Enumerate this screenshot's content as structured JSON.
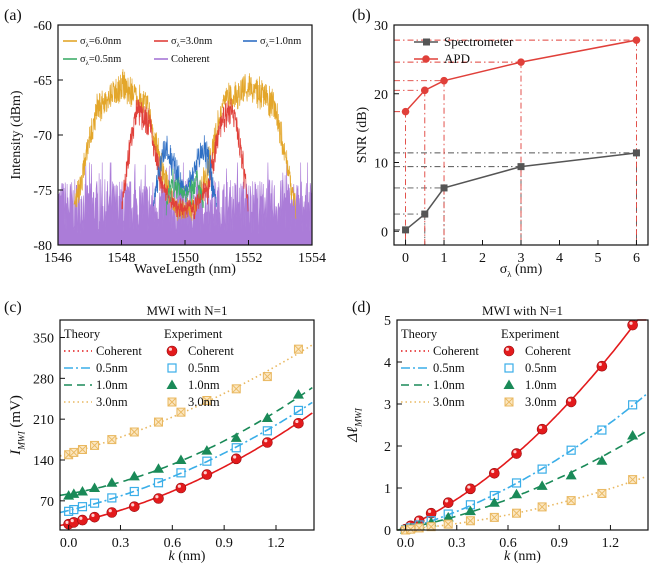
{
  "chart_data": [
    {
      "id": "a",
      "type": "area",
      "panel_label": "(a)",
      "title": "",
      "xlabel": "WaveLength (nm)",
      "ylabel": "Intensity (dBm)",
      "xlim": [
        1546,
        1554
      ],
      "ylim": [
        -80,
        -60
      ],
      "xticks": [
        1546,
        1548,
        1550,
        1552,
        1554
      ],
      "yticks": [
        -80,
        -75,
        -70,
        -65,
        -60
      ],
      "legend": [
        {
          "label": "σ",
          "sub": "λ",
          "tail": "=6.0nm",
          "color": "#e3a62a"
        },
        {
          "label": "σ",
          "sub": "λ",
          "tail": "=3.0nm",
          "color": "#e0403a"
        },
        {
          "label": "σ",
          "sub": "λ",
          "tail": "=1.0nm",
          "color": "#2f6fc4"
        },
        {
          "label": "σ",
          "sub": "λ",
          "tail": "=0.5nm",
          "color": "#3fae6a"
        },
        {
          "label": "Coherent",
          "sub": "",
          "tail": "",
          "color": "#a776d6"
        }
      ],
      "series": [
        {
          "name": "6.0nm",
          "color": "#e3a62a",
          "envelope": [
            [
              1546.5,
              -76
            ],
            [
              1546.8,
              -72
            ],
            [
              1547.2,
              -66.5
            ],
            [
              1548.0,
              -64.2
            ],
            [
              1548.8,
              -66
            ],
            [
              1549.3,
              -72
            ],
            [
              1549.7,
              -76
            ],
            [
              1550.3,
              -76
            ],
            [
              1550.7,
              -72
            ],
            [
              1551.2,
              -66
            ],
            [
              1552.0,
              -64
            ],
            [
              1552.8,
              -66
            ],
            [
              1553.2,
              -71
            ],
            [
              1553.5,
              -76
            ]
          ]
        },
        {
          "name": "3.0nm",
          "color": "#e0403a",
          "envelope": [
            [
              1548.0,
              -76
            ],
            [
              1548.2,
              -71
            ],
            [
              1548.5,
              -66.5
            ],
            [
              1548.9,
              -68
            ],
            [
              1549.3,
              -74
            ],
            [
              1549.7,
              -76
            ],
            [
              1550.3,
              -76
            ],
            [
              1550.7,
              -74
            ],
            [
              1551.1,
              -68
            ],
            [
              1551.5,
              -66.5
            ],
            [
              1551.8,
              -71
            ],
            [
              1552.0,
              -76
            ]
          ]
        },
        {
          "name": "1.0nm",
          "color": "#2f6fc4",
          "envelope": [
            [
              1549.0,
              -76
            ],
            [
              1549.2,
              -72
            ],
            [
              1549.4,
              -70
            ],
            [
              1549.7,
              -72
            ],
            [
              1549.9,
              -74
            ],
            [
              1550.1,
              -74
            ],
            [
              1550.3,
              -72
            ],
            [
              1550.6,
              -70
            ],
            [
              1550.8,
              -72
            ],
            [
              1551.0,
              -76
            ]
          ]
        },
        {
          "name": "0.5nm",
          "color": "#3fae6a",
          "envelope": [
            [
              1549.4,
              -76
            ],
            [
              1549.6,
              -73
            ],
            [
              1549.8,
              -74
            ],
            [
              1550.0,
              -75
            ],
            [
              1550.2,
              -74
            ],
            [
              1550.4,
              -73
            ],
            [
              1550.6,
              -76
            ]
          ]
        },
        {
          "name": "Coherent",
          "color": "#a776d6",
          "envelope": [
            [
              1546,
              -76.5
            ],
            [
              1554,
              -76.5
            ]
          ]
        }
      ]
    },
    {
      "id": "b",
      "type": "line",
      "panel_label": "(b)",
      "xlabel": "σ",
      "xlabel_sub": "λ",
      "xlabel_tail": " (nm)",
      "ylabel": "SNR (dB)",
      "xlim": [
        -0.3,
        6.3
      ],
      "ylim": [
        -2,
        30
      ],
      "xticks": [
        0,
        1,
        2,
        3,
        4,
        5,
        6
      ],
      "yticks": [
        0,
        10,
        20,
        30
      ],
      "x": [
        0,
        0.5,
        1,
        3,
        6
      ],
      "series": [
        {
          "name": "Spectrometer",
          "color": "#555555",
          "marker": "square",
          "values": [
            0.2,
            2.5,
            6.3,
            9.4,
            11.4
          ]
        },
        {
          "name": "APD",
          "color": "#e0403a",
          "marker": "circle",
          "values": [
            17.4,
            20.5,
            21.9,
            24.6,
            27.8
          ]
        }
      ]
    },
    {
      "id": "c",
      "type": "scatter",
      "panel_label": "(c)",
      "title": "MWI with N=1",
      "xlabel": "k (nm)",
      "ylabel": "I",
      "ylabel_sub": "MWI",
      "ylabel_tail": " (mV)",
      "xlim": [
        -0.05,
        1.42
      ],
      "ylim": [
        20,
        380
      ],
      "xticks": [
        "0.0",
        "0.3",
        "0.6",
        "0.9",
        "1.2"
      ],
      "yticks": [
        70,
        140,
        210,
        280,
        350
      ],
      "legend_theory_title": "Theory",
      "legend_exp_title": "Experiment",
      "x": [
        0.0,
        0.03,
        0.08,
        0.15,
        0.25,
        0.38,
        0.52,
        0.65,
        0.8,
        0.97,
        1.15,
        1.33
      ],
      "series": [
        {
          "name": "Coherent",
          "color": "#e31a1c",
          "marker": "sphere",
          "dash": "1.5,3",
          "values": [
            30,
            33,
            37,
            42,
            50,
            60,
            74,
            92,
            115,
            142,
            170,
            203
          ]
        },
        {
          "name": "0.5nm",
          "color": "#3aaee8",
          "marker": "open-square",
          "dash": "9,3,2,3",
          "values": [
            52,
            55,
            60,
            66,
            75,
            86,
            101,
            118,
            138,
            161,
            190,
            225
          ]
        },
        {
          "name": "1.0nm",
          "color": "#1a8a58",
          "marker": "triangle",
          "dash": "8,5",
          "values": [
            79,
            82,
            86,
            92,
            101,
            112,
            125,
            140,
            156,
            178,
            212,
            252
          ]
        },
        {
          "name": "3.0nm",
          "color": "#e9b860",
          "marker": "crossed-square",
          "dash": "1.5,3",
          "values": [
            149,
            153,
            158,
            165,
            175,
            188,
            205,
            222,
            242,
            262,
            283,
            330
          ]
        }
      ]
    },
    {
      "id": "d",
      "type": "scatter",
      "panel_label": "(d)",
      "title": "MWI with N=1",
      "xlabel": "k (nm)",
      "ylabel": "Δℓ",
      "ylabel_sub": "MWI",
      "xlim": [
        -0.05,
        1.42
      ],
      "ylim": [
        0,
        5
      ],
      "xticks": [
        "0.0",
        "0.3",
        "0.6",
        "0.9",
        "1.2"
      ],
      "yticks": [
        0,
        1,
        2,
        3,
        4,
        5
      ],
      "legend_theory_title": "Theory",
      "legend_exp_title": "Experiment",
      "x": [
        0.0,
        0.03,
        0.08,
        0.15,
        0.25,
        0.38,
        0.52,
        0.65,
        0.8,
        0.97,
        1.15,
        1.33
      ],
      "series": [
        {
          "name": "Coherent",
          "color": "#e31a1c",
          "marker": "sphere",
          "dash": "1.5,3",
          "values": [
            0.02,
            0.1,
            0.22,
            0.4,
            0.65,
            0.98,
            1.35,
            1.82,
            2.4,
            3.05,
            3.9,
            4.88
          ]
        },
        {
          "name": "0.5nm",
          "color": "#3aaee8",
          "marker": "open-square",
          "dash": "9,3,2,3",
          "values": [
            0.01,
            0.05,
            0.12,
            0.22,
            0.38,
            0.6,
            0.82,
            1.12,
            1.45,
            1.9,
            2.38,
            2.98
          ]
        },
        {
          "name": "1.0nm",
          "color": "#1a8a58",
          "marker": "triangle",
          "dash": "8,5",
          "values": [
            0.01,
            0.04,
            0.1,
            0.18,
            0.3,
            0.45,
            0.65,
            0.85,
            1.05,
            1.3,
            1.65,
            2.25
          ]
        },
        {
          "name": "3.0nm",
          "color": "#e9b860",
          "marker": "crossed-square",
          "dash": "1.5,3",
          "values": [
            0.0,
            0.02,
            0.05,
            0.08,
            0.14,
            0.22,
            0.3,
            0.4,
            0.55,
            0.7,
            0.87,
            1.2
          ]
        }
      ]
    }
  ]
}
